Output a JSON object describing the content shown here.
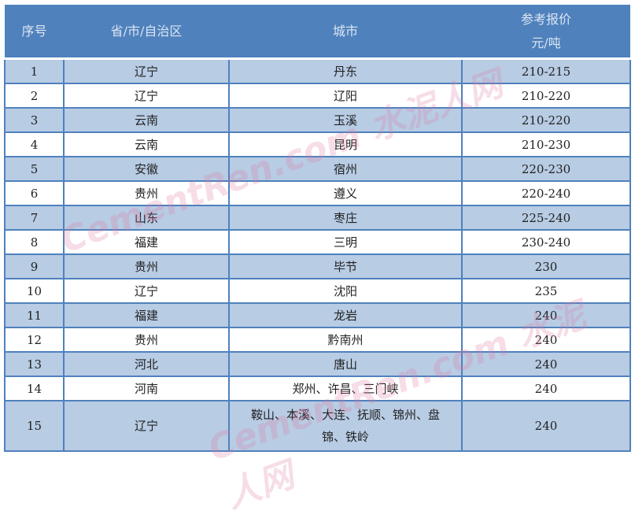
{
  "headers": [
    "序号",
    "省/市/自治区",
    "城市",
    "参考报价",
    "元/吨"
  ],
  "rows": [
    [
      "1",
      "辽宁",
      "丹东",
      "210-215"
    ],
    [
      "2",
      "辽宁",
      "辽阳",
      "210-220"
    ],
    [
      "3",
      "云南",
      "玉溪",
      "210-220"
    ],
    [
      "4",
      "云南",
      "昆明",
      "210-230"
    ],
    [
      "5",
      "安徽",
      "宿州",
      "220-230"
    ],
    [
      "6",
      "贵州",
      "遵义",
      "220-240"
    ],
    [
      "7",
      "山东",
      "枣庄",
      "225-240"
    ],
    [
      "8",
      "福建",
      "三明",
      "230-240"
    ],
    [
      "9",
      "贵州",
      "毕节",
      "230"
    ],
    [
      "10",
      "辽宁",
      "沈阳",
      "235"
    ],
    [
      "11",
      "福建",
      "龙岩",
      "240"
    ],
    [
      "12",
      "贵州",
      "黔南州",
      "240"
    ],
    [
      "13",
      "河北",
      "唐山",
      "240"
    ],
    [
      "14",
      "河南",
      "郑州、许昌、三门峡",
      "240"
    ],
    [
      "15",
      "辽宁",
      "鞍山、本溪、大连、抚顺、锦州、盘锦、铁岭",
      "240"
    ]
  ],
  "watermark": "CementRen.com 水泥人网",
  "colors": {
    "header": "#4f81bd",
    "alt_row": "#b8cce4"
  }
}
